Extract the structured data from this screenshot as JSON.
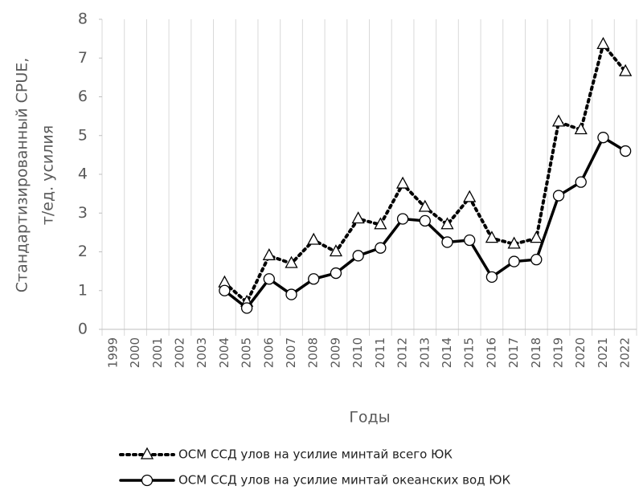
{
  "chart_data": {
    "type": "line",
    "y_label": [
      "Стандартизированный CPUE,",
      "т/ед. усилия"
    ],
    "x_label": "Годы",
    "categories": [
      "1999",
      "2000",
      "2001",
      "2002",
      "2003",
      "2004",
      "2005",
      "2006",
      "2007",
      "2008",
      "2009",
      "2010",
      "2011",
      "2012",
      "2013",
      "2014",
      "2015",
      "2016",
      "2017",
      "2018",
      "2019",
      "2020",
      "2021",
      "2022"
    ],
    "series": [
      {
        "name": "ОСМ ССД улов на усилие минтай всего ЮК",
        "color": "#000000",
        "style": "dotted",
        "marker": "triangle",
        "values": [
          null,
          null,
          null,
          null,
          null,
          1.2,
          0.7,
          1.9,
          1.7,
          2.3,
          2.0,
          2.85,
          2.7,
          3.75,
          3.15,
          2.7,
          3.4,
          2.35,
          2.2,
          2.35,
          5.35,
          5.15,
          7.35,
          6.65
        ]
      },
      {
        "name": "ОСМ ССД улов на усилие минтай океанских вод ЮК",
        "color": "#000000",
        "style": "solid",
        "marker": "circle",
        "values": [
          null,
          null,
          null,
          null,
          null,
          1.0,
          0.55,
          1.3,
          0.9,
          1.3,
          1.45,
          1.9,
          2.1,
          2.85,
          2.8,
          2.25,
          2.3,
          1.35,
          1.75,
          1.8,
          3.45,
          3.8,
          4.95,
          4.6
        ]
      }
    ],
    "ylim": [
      0,
      8
    ],
    "yticks": [
      0,
      1,
      2,
      3,
      4,
      5,
      6,
      7,
      8
    ],
    "legend": "bottom"
  }
}
